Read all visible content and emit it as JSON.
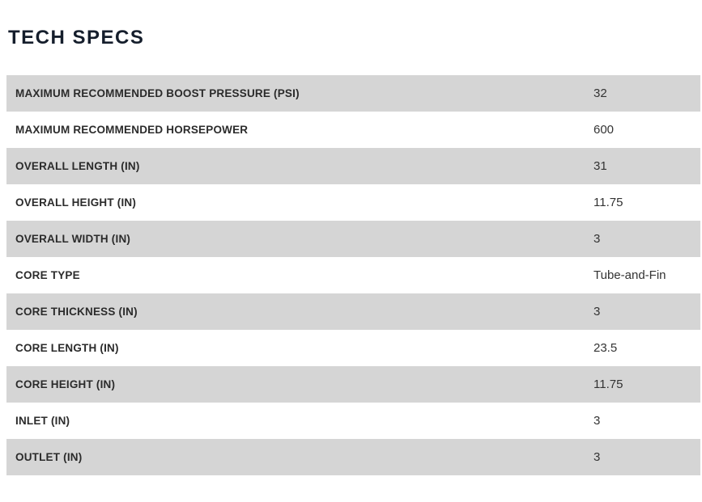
{
  "header": {
    "title": "TECH SPECS"
  },
  "specs_table": {
    "rows": [
      {
        "label": "MAXIMUM RECOMMENDED BOOST PRESSURE (PSI)",
        "value": "32"
      },
      {
        "label": "MAXIMUM RECOMMENDED HORSEPOWER",
        "value": "600"
      },
      {
        "label": "OVERALL LENGTH (IN)",
        "value": "31"
      },
      {
        "label": "OVERALL HEIGHT (IN)",
        "value": "11.75"
      },
      {
        "label": "OVERALL WIDTH (IN)",
        "value": "3"
      },
      {
        "label": "CORE TYPE",
        "value": "Tube-and-Fin"
      },
      {
        "label": "CORE THICKNESS (IN)",
        "value": "3"
      },
      {
        "label": "CORE LENGTH (IN)",
        "value": "23.5"
      },
      {
        "label": "CORE HEIGHT (IN)",
        "value": "11.75"
      },
      {
        "label": "INLET (IN)",
        "value": "3"
      },
      {
        "label": "OUTLET (IN)",
        "value": "3"
      }
    ]
  },
  "colors": {
    "heading_text": "#151e2c",
    "row_shaded": "#d5d5d5",
    "row_plain": "#ffffff",
    "label_text": "#2b2b2b",
    "value_text": "#333333",
    "page_background": "#ffffff"
  }
}
